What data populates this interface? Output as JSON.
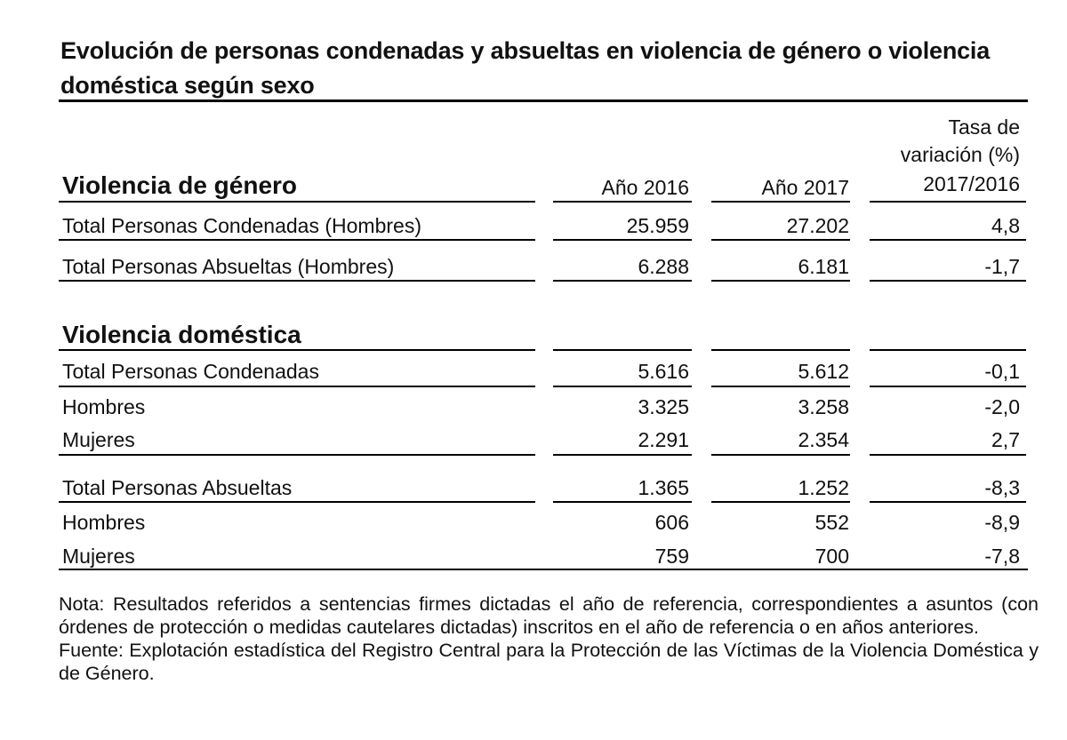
{
  "title": "Evolución de personas condenadas y absueltas en violencia de género o violencia doméstica según sexo",
  "header": {
    "col_2016": "Año 2016",
    "col_2017": "Año 2017",
    "col_rate_line1": "Tasa de",
    "col_rate_line2": "variación (%)",
    "col_rate_line3": "2017/2016"
  },
  "genero": {
    "title": "Violencia de género",
    "rows": [
      {
        "label": "Total Personas Condenadas (Hombres)",
        "y2016": "25.959",
        "y2017": "27.202",
        "rate": "4,8"
      },
      {
        "label": "Total Personas Absueltas (Hombres)",
        "y2016": "6.288",
        "y2017": "6.181",
        "rate": "-1,7"
      }
    ]
  },
  "domestica": {
    "title": "Violencia doméstica",
    "rows": [
      {
        "label": "Total Personas Condenadas",
        "y2016": "5.616",
        "y2017": "5.612",
        "rate": "-0,1"
      },
      {
        "label": "Hombres",
        "y2016": "3.325",
        "y2017": "3.258",
        "rate": "-2,0"
      },
      {
        "label": "Mujeres",
        "y2016": "2.291",
        "y2017": "2.354",
        "rate": "2,7"
      },
      {
        "label": "Total Personas Absueltas",
        "y2016": "1.365",
        "y2017": "1.252",
        "rate": "-8,3"
      },
      {
        "label": "Hombres",
        "y2016": "606",
        "y2017": "552",
        "rate": "-8,9"
      },
      {
        "label": "Mujeres",
        "y2016": "759",
        "y2017": "700",
        "rate": "-7,8"
      }
    ]
  },
  "note": "Nota: Resultados referidos a sentencias firmes dictadas el año de referencia, correspondientes a asuntos (con órdenes de protección o medidas cautelares dictadas) inscritos en el año de referencia o en años anteriores.",
  "source": "Fuente: Explotación estadística del Registro Central para la Protección de las Víctimas de la Violencia Doméstica y de Género."
}
